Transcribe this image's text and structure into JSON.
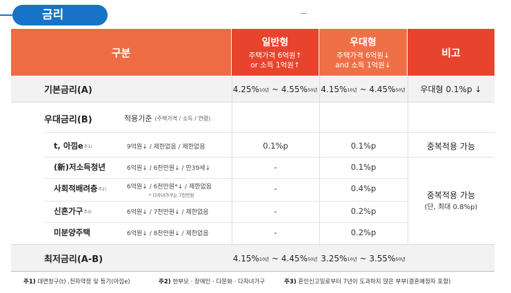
{
  "section_title": "금리",
  "header": {
    "category": "구분",
    "general": {
      "title": "일반형",
      "line1": "주택가격 6억원↑",
      "line2": "or 소득 1억원↑"
    },
    "preferential": {
      "title": "우대형",
      "line1": "주택가격 6억원↓",
      "line2": "and 소득 1억원↓"
    },
    "note": "비고"
  },
  "base_rate": {
    "label": "기본금리(A)",
    "general": {
      "low": "4.25%",
      "low_sup": "10년",
      "sep": " ~ ",
      "high": "4.55%",
      "high_sup": "50년"
    },
    "preferential": {
      "low": "4.15%",
      "low_sup": "10년",
      "sep": " ~ ",
      "high": "4.45%",
      "high_sup": "50년"
    },
    "note": "우대형 0.1%p ↓"
  },
  "pref_rate": {
    "label": "우대금리(B)",
    "criteria_label": "적용기준",
    "criteria_detail": "(주택가격 / 소득 / 연령)",
    "items": [
      {
        "name": "t, 아낌e",
        "sup": "주1)",
        "criteria": "9억원↓ / 제한없음 / 제한없음",
        "sub_note": "",
        "general": "0.1%p",
        "preferential": "0.1%p"
      },
      {
        "name": "(新)저소득청년",
        "sup": "",
        "criteria": "6억원↓ / 6천만원↓ / 만39세↓",
        "sub_note": "",
        "general": "-",
        "preferential": "0.1%p"
      },
      {
        "name": "사회적배려층",
        "sup": "주2)",
        "criteria": "6억원↓ / 6천만원*↓ / 제한없음",
        "sub_note": "* 다자녀가구는 7천만원",
        "general": "-",
        "preferential": "0.4%p"
      },
      {
        "name": "신혼가구",
        "sup": "주3)",
        "criteria": "6억원↓ / 7천만원↓ / 제한없음",
        "sub_note": "",
        "general": "-",
        "preferential": "0.2%p"
      },
      {
        "name": "미분양주택",
        "sup": "",
        "criteria": "6억원↓ / 8천만원↓ / 제한없음",
        "sub_note": "",
        "general": "-",
        "preferential": "0.2%p"
      }
    ],
    "note1": "중복적용 가능",
    "note2_line1": "중복적용 가능",
    "note2_line2": "(단, 최대 0.8%p)"
  },
  "min_rate": {
    "label": "최저금리(A-B)",
    "general": {
      "low": "4.15%",
      "low_sup": "10년",
      "sep": " ~ ",
      "high": "4.45%",
      "high_sup": "50년"
    },
    "preferential": {
      "low": "3.25%",
      "low_sup": "10년",
      "sep": " ~ ",
      "high": "3.55%",
      "high_sup": "50년"
    }
  },
  "footnotes": [
    {
      "mark": "주1)",
      "text": "대면창구(t) ,전자약정 및 등기(아낌e)"
    },
    {
      "mark": "주2)",
      "text": "한부모 · 장애인 · 다문화 · 다자녀가구"
    },
    {
      "mark": "주3)",
      "text": "혼인신고일로부터 7년이 도과하지 않은 부부(결혼예정자 포함)"
    }
  ]
}
